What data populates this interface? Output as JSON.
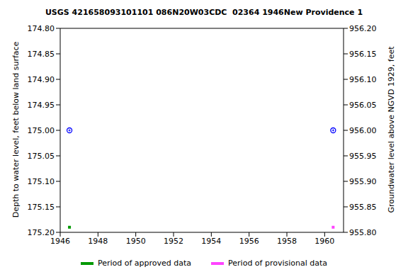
{
  "chart_data": {
    "type": "scatter",
    "title": "USGS 421658093101101 086N20W03CDC  02364 1946New Providence 1",
    "x_label": "",
    "y_label": "Depth to water level, feet below land surface",
    "y2_label": "Groundwater level above NGVD 1929, feet",
    "xlim": [
      1946,
      1961
    ],
    "xticks": [
      1946,
      1948,
      1950,
      1952,
      1954,
      1956,
      1958,
      1960
    ],
    "ylim": [
      175.2,
      174.8
    ],
    "yticks": [
      {
        "value": 174.8,
        "label": "174.80"
      },
      {
        "value": 174.85,
        "label": "174.85"
      },
      {
        "value": 174.9,
        "label": "174.90"
      },
      {
        "value": 174.95,
        "label": "174.95"
      },
      {
        "value": 175.0,
        "label": "175.00"
      },
      {
        "value": 175.05,
        "label": "175.05"
      },
      {
        "value": 175.1,
        "label": "175.10"
      },
      {
        "value": 175.15,
        "label": "175.15"
      },
      {
        "value": 175.2,
        "label": "175.20"
      }
    ],
    "y2lim": [
      955.8,
      956.2
    ],
    "y2ticks": [
      {
        "value": 955.8,
        "label": "955.80"
      },
      {
        "value": 955.85,
        "label": "955.85"
      },
      {
        "value": 955.9,
        "label": "955.90"
      },
      {
        "value": 955.95,
        "label": "955.95"
      },
      {
        "value": 956.0,
        "label": "956.00"
      },
      {
        "value": 956.05,
        "label": "956.05"
      },
      {
        "value": 956.1,
        "label": "956.10"
      },
      {
        "value": 956.15,
        "label": "956.15"
      },
      {
        "value": 956.2,
        "label": "956.20"
      }
    ],
    "grid": false,
    "series": [
      {
        "color": "#0000ff",
        "marker": "circle",
        "x": [
          1946.49,
          1960.45
        ],
        "values": [
          175.0,
          175.0
        ]
      },
      {
        "name": "Period of approved data",
        "color": "#009900",
        "marker": "square",
        "x": [
          1946.49
        ],
        "values": [
          175.19
        ]
      },
      {
        "name": "Period of provisional data",
        "color": "#ff44ff",
        "marker": "square",
        "x": [
          1960.45
        ],
        "values": [
          175.19
        ]
      }
    ]
  }
}
